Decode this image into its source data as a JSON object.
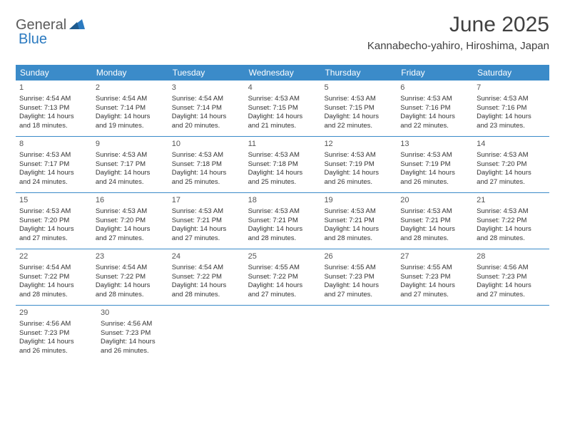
{
  "logo": {
    "text1": "General",
    "text2": "Blue"
  },
  "title": "June 2025",
  "location": "Kannabecho-yahiro, Hiroshima, Japan",
  "colors": {
    "header_bg": "#3b8bc9",
    "header_text": "#ffffff",
    "border": "#3b8bc9",
    "body_text": "#333333",
    "title_text": "#404040",
    "logo_gray": "#5a5a5a",
    "logo_blue": "#2b7ac0",
    "background": "#ffffff"
  },
  "day_names": [
    "Sunday",
    "Monday",
    "Tuesday",
    "Wednesday",
    "Thursday",
    "Friday",
    "Saturday"
  ],
  "weeks": [
    [
      {
        "n": "1",
        "sr": "4:54 AM",
        "ss": "7:13 PM",
        "dh": "14",
        "dm": "18"
      },
      {
        "n": "2",
        "sr": "4:54 AM",
        "ss": "7:14 PM",
        "dh": "14",
        "dm": "19"
      },
      {
        "n": "3",
        "sr": "4:54 AM",
        "ss": "7:14 PM",
        "dh": "14",
        "dm": "20"
      },
      {
        "n": "4",
        "sr": "4:53 AM",
        "ss": "7:15 PM",
        "dh": "14",
        "dm": "21"
      },
      {
        "n": "5",
        "sr": "4:53 AM",
        "ss": "7:15 PM",
        "dh": "14",
        "dm": "22"
      },
      {
        "n": "6",
        "sr": "4:53 AM",
        "ss": "7:16 PM",
        "dh": "14",
        "dm": "22"
      },
      {
        "n": "7",
        "sr": "4:53 AM",
        "ss": "7:16 PM",
        "dh": "14",
        "dm": "23"
      }
    ],
    [
      {
        "n": "8",
        "sr": "4:53 AM",
        "ss": "7:17 PM",
        "dh": "14",
        "dm": "24"
      },
      {
        "n": "9",
        "sr": "4:53 AM",
        "ss": "7:17 PM",
        "dh": "14",
        "dm": "24"
      },
      {
        "n": "10",
        "sr": "4:53 AM",
        "ss": "7:18 PM",
        "dh": "14",
        "dm": "25"
      },
      {
        "n": "11",
        "sr": "4:53 AM",
        "ss": "7:18 PM",
        "dh": "14",
        "dm": "25"
      },
      {
        "n": "12",
        "sr": "4:53 AM",
        "ss": "7:19 PM",
        "dh": "14",
        "dm": "26"
      },
      {
        "n": "13",
        "sr": "4:53 AM",
        "ss": "7:19 PM",
        "dh": "14",
        "dm": "26"
      },
      {
        "n": "14",
        "sr": "4:53 AM",
        "ss": "7:20 PM",
        "dh": "14",
        "dm": "27"
      }
    ],
    [
      {
        "n": "15",
        "sr": "4:53 AM",
        "ss": "7:20 PM",
        "dh": "14",
        "dm": "27"
      },
      {
        "n": "16",
        "sr": "4:53 AM",
        "ss": "7:20 PM",
        "dh": "14",
        "dm": "27"
      },
      {
        "n": "17",
        "sr": "4:53 AM",
        "ss": "7:21 PM",
        "dh": "14",
        "dm": "27"
      },
      {
        "n": "18",
        "sr": "4:53 AM",
        "ss": "7:21 PM",
        "dh": "14",
        "dm": "28"
      },
      {
        "n": "19",
        "sr": "4:53 AM",
        "ss": "7:21 PM",
        "dh": "14",
        "dm": "28"
      },
      {
        "n": "20",
        "sr": "4:53 AM",
        "ss": "7:21 PM",
        "dh": "14",
        "dm": "28"
      },
      {
        "n": "21",
        "sr": "4:53 AM",
        "ss": "7:22 PM",
        "dh": "14",
        "dm": "28"
      }
    ],
    [
      {
        "n": "22",
        "sr": "4:54 AM",
        "ss": "7:22 PM",
        "dh": "14",
        "dm": "28"
      },
      {
        "n": "23",
        "sr": "4:54 AM",
        "ss": "7:22 PM",
        "dh": "14",
        "dm": "28"
      },
      {
        "n": "24",
        "sr": "4:54 AM",
        "ss": "7:22 PM",
        "dh": "14",
        "dm": "28"
      },
      {
        "n": "25",
        "sr": "4:55 AM",
        "ss": "7:22 PM",
        "dh": "14",
        "dm": "27"
      },
      {
        "n": "26",
        "sr": "4:55 AM",
        "ss": "7:23 PM",
        "dh": "14",
        "dm": "27"
      },
      {
        "n": "27",
        "sr": "4:55 AM",
        "ss": "7:23 PM",
        "dh": "14",
        "dm": "27"
      },
      {
        "n": "28",
        "sr": "4:56 AM",
        "ss": "7:23 PM",
        "dh": "14",
        "dm": "27"
      }
    ],
    [
      {
        "n": "29",
        "sr": "4:56 AM",
        "ss": "7:23 PM",
        "dh": "14",
        "dm": "26"
      },
      {
        "n": "30",
        "sr": "4:56 AM",
        "ss": "7:23 PM",
        "dh": "14",
        "dm": "26"
      },
      null,
      null,
      null,
      null,
      null
    ]
  ],
  "labels": {
    "sunrise": "Sunrise:",
    "sunset": "Sunset:",
    "daylight": "Daylight:",
    "hours": "hours",
    "and": "and",
    "minutes": "minutes."
  }
}
